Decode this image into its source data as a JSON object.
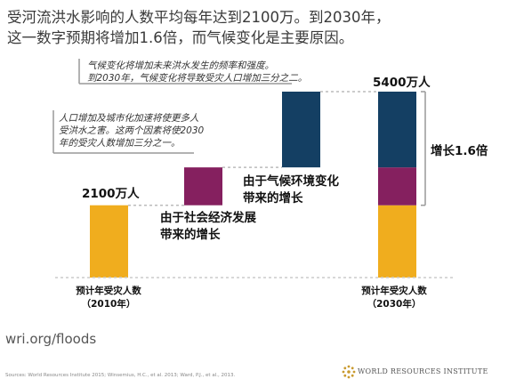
{
  "title_lines": [
    "受河流洪水影响的人数平均每年达到2100万。到2030年，",
    "这一数字预期将增加1.6倍，而气候变化是主要原因。"
  ],
  "colors": {
    "base": "#f0ad1e",
    "socioeconomic": "#85205f",
    "climate": "#143f63",
    "connector": "#bbbbbb",
    "axis": "#cccccc"
  },
  "notes": {
    "top": [
      "气候变化将增加未来洪水发生的频率和强度。",
      "到2030年，气候变化将导致受灾人口增加三分之二。"
    ],
    "middle": [
      "人口增加及城市化加速将使更多人",
      "受洪水之害。这两个因素将使2030",
      "年的受灾人数增加三分之一。"
    ]
  },
  "labels": {
    "base_value": "2100万人",
    "final_value": "5400万人",
    "socio": [
      "由于社会经济发展",
      "带来的增长"
    ],
    "climate": [
      "由于气候环境变化",
      "带来的增长"
    ],
    "increase": "增长1.6倍",
    "x2010": [
      "预计年受灾人数",
      "（2010年）"
    ],
    "x2030": [
      "预计年受灾人数",
      "（2030年）"
    ]
  },
  "chart_data": {
    "type": "bar",
    "unit": "万人",
    "categories": [
      "预计年受灾人数（2010年）",
      "由于社会经济发展带来的增长",
      "由于气候环境变化带来的增长",
      "预计年受灾人数（2030年）"
    ],
    "segments": [
      {
        "name": "预计年受灾人数（2010年）",
        "values": [
          2100,
          0,
          0,
          2100
        ]
      },
      {
        "name": "由于社会经济发展带来的增长",
        "values": [
          0,
          1100,
          0,
          1100
        ]
      },
      {
        "name": "由于气候环境变化带来的增长",
        "values": [
          0,
          0,
          2200,
          2200
        ]
      }
    ],
    "waterfall_offsets": [
      0,
      2100,
      3200,
      0
    ],
    "totals": {
      "2010": 2100,
      "2030": 5400
    }
  },
  "footer": {
    "url": "wri.org/floods",
    "sources": "Sources: World Resources Institute 2015; Winsemius, H.C., et al. 2013; Ward, P.J., et al., 2013.",
    "org": "WORLD RESOURCES INSTITUTE"
  }
}
